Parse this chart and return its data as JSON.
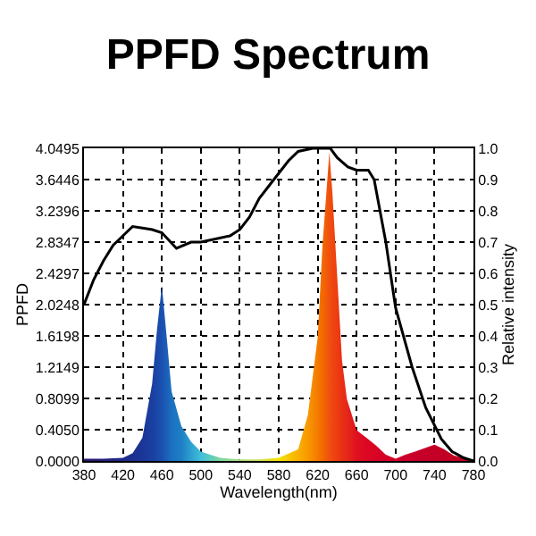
{
  "chart_data": {
    "type": "line",
    "title": "PPFD Spectrum",
    "xlabel": "Wavelength(nm)",
    "ylabel": "PPFD",
    "y2label": "Relative intensity",
    "xlim": [
      380,
      780
    ],
    "xticks": [
      380,
      420,
      460,
      500,
      540,
      580,
      620,
      660,
      700,
      740,
      780
    ],
    "ylim": [
      0,
      4.0495
    ],
    "yticks": [
      {
        "value": 0,
        "label": "0.0000"
      },
      {
        "value": 0.405,
        "label": "0.4050"
      },
      0.8099,
      1.2149,
      1.6198,
      2.0248,
      2.4297,
      2.8347,
      3.2396,
      3.6446,
      4.0495
    ],
    "y2lim": [
      0,
      1
    ],
    "y2ticks": [
      {
        "value": 0,
        "label": "0.0"
      },
      0.1,
      0.2,
      0.3,
      0.4,
      0.5,
      0.6,
      0.7,
      0.8,
      0.9,
      {
        "value": 1,
        "label": "1.0"
      }
    ],
    "grid": true,
    "series": [
      {
        "type": "area",
        "x": [
          380,
          400,
          420,
          430,
          440,
          450,
          455,
          460,
          465,
          470,
          480,
          490,
          500,
          520,
          540,
          560,
          580,
          600,
          610,
          620,
          625,
          632,
          635,
          640,
          645,
          650,
          660,
          670,
          680,
          690,
          700,
          710,
          720,
          740,
          750,
          760,
          770,
          780
        ],
        "values": [
          0.03,
          0.03,
          0.04,
          0.1,
          0.3,
          1.0,
          1.7,
          2.27,
          1.6,
          0.9,
          0.45,
          0.25,
          0.12,
          0.04,
          0.02,
          0.02,
          0.04,
          0.15,
          0.6,
          1.6,
          2.8,
          4.0,
          3.5,
          2.4,
          1.3,
          0.8,
          0.4,
          0.3,
          0.2,
          0.08,
          0.03,
          0.08,
          0.12,
          0.21,
          0.15,
          0.07,
          0.04,
          0.02
        ],
        "colors": [
          "#2a1a6e",
          "#25207a",
          "#1e2a8c",
          "#1c3090",
          "#1a3698",
          "#1a3fa0",
          "#1a48a8",
          "#1a50b0",
          "#1a60b8",
          "#1b70c0",
          "#1d7fc4",
          "#2ea0d0",
          "#3fbfdc",
          "#7fd6a0",
          "#a8dc80",
          "#c8e060",
          "#f4e000",
          "#f9b000",
          "#f89800",
          "#f47a00",
          "#f26a00",
          "#f05010",
          "#ee4810",
          "#ee3c10",
          "#e83018",
          "#e42818",
          "#e01020",
          "#dc0822",
          "#d80424",
          "#d40026",
          "#d0002a",
          "#cc002a",
          "#c8002a",
          "#c40026",
          "#c20024",
          "#c00022",
          "#c00020",
          "#c00020"
        ]
      },
      {
        "axis": "y2",
        "color": "#000000",
        "x": [
          380,
          390,
          400,
          410,
          420,
          430,
          440,
          450,
          460,
          475,
          490,
          500,
          515,
          530,
          540,
          550,
          560,
          570,
          580,
          590,
          600,
          615,
          633,
          640,
          651,
          660,
          672,
          678,
          690,
          700,
          717,
          731,
          747,
          758,
          770,
          780
        ],
        "values": [
          0.5,
          0.58,
          0.64,
          0.69,
          0.72,
          0.75,
          0.745,
          0.74,
          0.73,
          0.68,
          0.7,
          0.7,
          0.71,
          0.72,
          0.74,
          0.78,
          0.84,
          0.88,
          0.92,
          0.96,
          0.99,
          1.0,
          1.0,
          0.97,
          0.94,
          0.93,
          0.93,
          0.9,
          0.7,
          0.49,
          0.3,
          0.17,
          0.07,
          0.03,
          0.01,
          0.0
        ]
      }
    ]
  }
}
